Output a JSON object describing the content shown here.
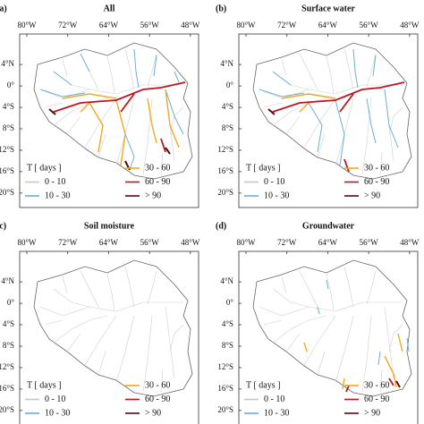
{
  "panels": [
    {
      "label": "(a)",
      "title": "All"
    },
    {
      "label": "(b)",
      "title": "Surface water"
    },
    {
      "label": "(c)",
      "title": "Soil moisture"
    },
    {
      "label": "(d)",
      "title": "Groundwater"
    }
  ],
  "map": {
    "xlim": [
      -81.4,
      -46.4
    ],
    "ylim": [
      -22.7,
      9.7
    ],
    "xticks": [
      {
        "value": -80,
        "label": "80°W"
      },
      {
        "value": -72,
        "label": "72°W"
      },
      {
        "value": -64,
        "label": "64°W"
      },
      {
        "value": -56,
        "label": "56°W"
      },
      {
        "value": -48,
        "label": "48°W"
      }
    ],
    "yticks": [
      {
        "value": 4,
        "label": "4°N"
      },
      {
        "value": 0,
        "label": "0°"
      },
      {
        "value": -4,
        "label": "4°S"
      },
      {
        "value": -8,
        "label": "8°S"
      },
      {
        "value": -12,
        "label": "12°S"
      },
      {
        "value": -16,
        "label": "16°S"
      },
      {
        "value": -20,
        "label": "20°S"
      }
    ]
  },
  "legend": {
    "title": "T [ days ]",
    "entries": [
      {
        "label": "0 - 10",
        "color": "#c8c8c8"
      },
      {
        "label": "10 - 30",
        "color": "#6baed6"
      },
      {
        "label": "30 - 60",
        "color": "#f0a820"
      },
      {
        "label": "60 - 90",
        "color": "#c0141e"
      },
      {
        "label": "> 90",
        "color": "#5a0a0a"
      }
    ]
  }
}
